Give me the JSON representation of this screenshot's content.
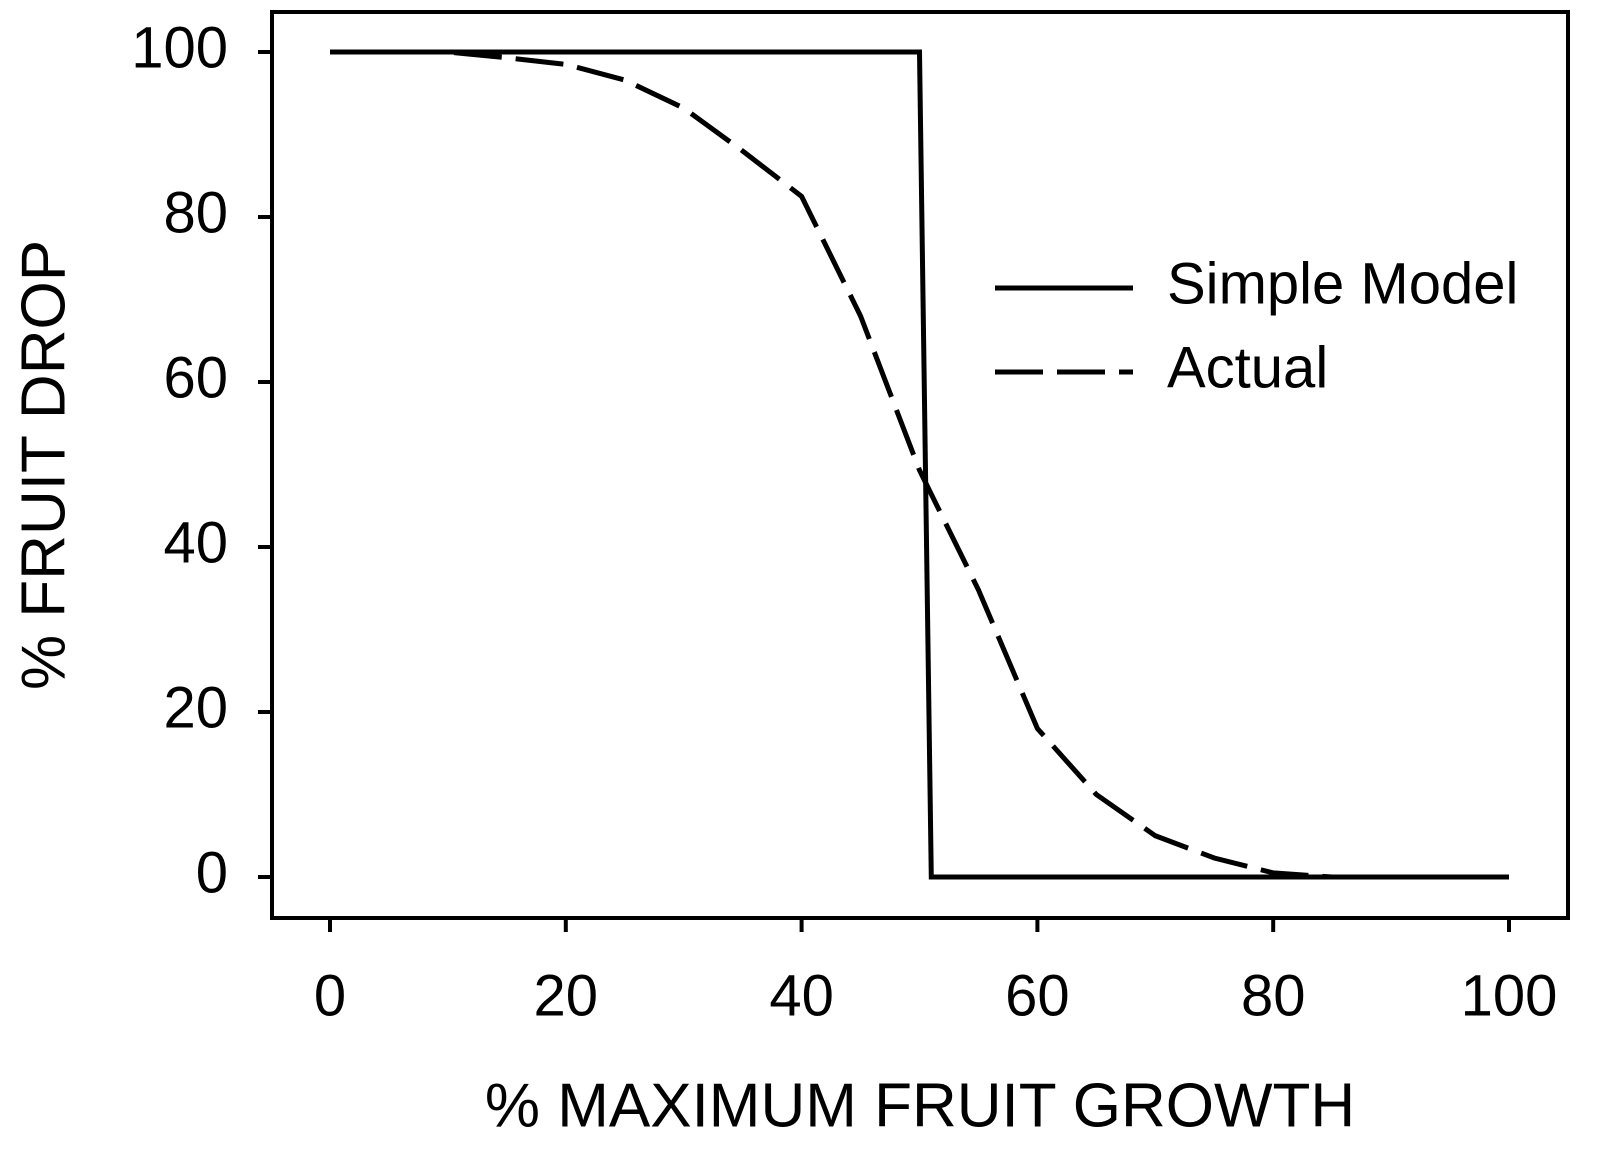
{
  "chart_data": {
    "type": "line",
    "xlabel": "% MAXIMUM FRUIT GROWTH",
    "ylabel": "% FRUIT DROP",
    "xlim": [
      0,
      100
    ],
    "xticks": [
      0,
      20,
      40,
      60,
      80,
      100
    ],
    "ylim": [
      0,
      100
    ],
    "yticks": [
      0,
      20,
      40,
      60,
      80,
      100
    ],
    "legend": "right",
    "series": [
      {
        "name": "Simple Model",
        "color": "#000000",
        "dashed": false,
        "x": [
          0,
          50,
          51,
          100
        ],
        "values": [
          100,
          100,
          0,
          0
        ]
      },
      {
        "name": "Actual",
        "color": "#000000",
        "dashed": true,
        "x": [
          0,
          5,
          10,
          15,
          20,
          25,
          30,
          35,
          40,
          45,
          50,
          55,
          60,
          65,
          70,
          75,
          80,
          85,
          90,
          95,
          100
        ],
        "values": [
          100,
          100,
          100,
          99.3,
          98.5,
          96.6,
          93.2,
          88,
          82.5,
          68,
          49.3,
          34.8,
          18,
          10,
          5,
          2.3,
          0.5,
          0,
          0,
          0,
          0
        ]
      }
    ]
  }
}
